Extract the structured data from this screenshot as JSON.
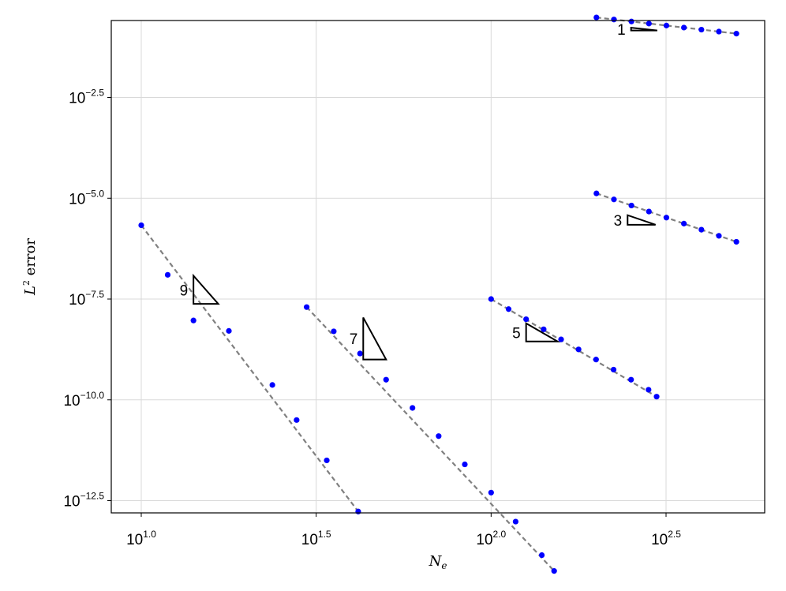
{
  "chart_data": {
    "type": "scatter",
    "title": "",
    "xlabel": "N_e",
    "ylabel": "L^2 error",
    "xscale": "log10",
    "yscale": "log10",
    "xlim_log10": [
      0.92,
      2.8
    ],
    "ylim_log10": [
      -12.85,
      -0.2
    ],
    "x_ticks": [
      {
        "base": "10",
        "exp": "1.0",
        "log10": 1.0
      },
      {
        "base": "10",
        "exp": "1.5",
        "log10": 1.5
      },
      {
        "base": "10",
        "exp": "2.0",
        "log10": 2.0
      },
      {
        "base": "10",
        "exp": "2.5",
        "log10": 2.5
      }
    ],
    "y_ticks": [
      {
        "base": "10",
        "exp": "−2.5",
        "log10": -2.5
      },
      {
        "base": "10",
        "exp": "−5.0",
        "log10": -5.0
      },
      {
        "base": "10",
        "exp": "−7.5",
        "log10": -7.5
      },
      {
        "base": "10",
        "exp": "−10.0",
        "log10": -10.0
      },
      {
        "base": "10",
        "exp": "−12.5",
        "log10": -12.5
      }
    ],
    "grid": true,
    "marker_color": "#0000ff",
    "fit_line_color": "#808080",
    "series": [
      {
        "slope_label": "1",
        "x": [
          200.0,
          224.4,
          251.8,
          282.5,
          317.0,
          355.7,
          399.1,
          447.8,
          502.4
        ],
        "y": [
          0.305,
          0.271,
          0.242,
          0.215,
          0.192,
          0.171,
          0.152,
          0.136,
          0.121
        ],
        "triangle": {
          "x": [
            251.2,
            298.5
          ],
          "y": [
            0.17,
            0.145
          ]
        }
      },
      {
        "slope_label": "3",
        "x": [
          200.0,
          224.4,
          251.8,
          282.5,
          317.0,
          355.7,
          399.1,
          447.8,
          502.4
        ],
        "y": [
          1.32e-05,
          9.35e-06,
          6.61e-06,
          4.68e-06,
          3.31e-06,
          2.35e-06,
          1.66e-06,
          1.17e-06,
          8.32e-07
        ],
        "triangle": {
          "x": [
            245.5,
            295.1
          ],
          "y": [
            3.8e-06,
            2.2e-06
          ]
        }
      },
      {
        "slope_label": "5",
        "x": [
          100.0,
          112.2,
          125.9,
          141.3,
          158.5,
          177.8,
          199.5,
          223.9,
          251.2,
          281.8,
          297.2
        ],
        "y": [
          3.16e-08,
          1.78e-08,
          1e-08,
          5.62e-09,
          3.16e-09,
          1.78e-09,
          1e-09,
          5.62e-10,
          3.16e-10,
          1.78e-10,
          1.2e-10
        ],
        "triangle": {
          "x": [
            125.9,
            154.9
          ],
          "y": [
            7.9e-09,
            2.8e-09
          ]
        }
      },
      {
        "slope_label": "7",
        "x": [
          29.7,
          35.5,
          42.2,
          50.1,
          59.6,
          70.8,
          84.1,
          100.0,
          117.5,
          139.6,
          151.4
        ],
        "y": [
          2e-08,
          5e-09,
          1.41e-09,
          3.16e-10,
          6.31e-11,
          1.26e-11,
          2.51e-12,
          5.01e-13,
          9.55e-14,
          1.41e-14,
          5.7e-15
        ],
        "triangle": {
          "x": [
            43.1,
            50.1
          ],
          "y": [
            1.1e-08,
            1e-09
          ]
        }
      },
      {
        "slope_label": "9",
        "x": [
          10.0,
          11.9,
          14.1,
          17.8,
          23.7,
          27.8,
          33.9,
          41.7
        ],
        "y": [
          2.14e-06,
          1.26e-07,
          9.3e-09,
          5.13e-09,
          2.34e-10,
          3.16e-11,
          3.16e-12,
          1.7e-13
        ],
        "triangle": {
          "x": [
            14.1,
            16.6
          ],
          "y": [
            1.2e-07,
            2.4e-08
          ]
        }
      }
    ]
  }
}
